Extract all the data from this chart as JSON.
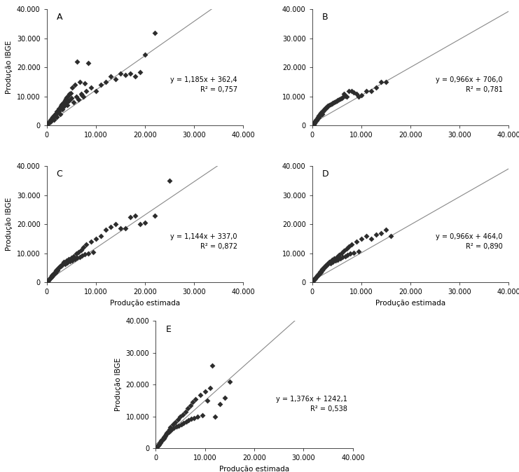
{
  "panels": [
    {
      "label": "A",
      "slope": 1.185,
      "intercept": 362.4,
      "r2": 0.757,
      "eq_text": "y = 1,185x + 362,4",
      "r2_text": "R² = 0,757",
      "scatter_x": [
        200,
        400,
        600,
        800,
        1000,
        1200,
        1400,
        1500,
        1800,
        2000,
        2200,
        2400,
        2600,
        2800,
        3000,
        3200,
        3400,
        3500,
        3800,
        4000,
        4200,
        4500,
        4800,
        5000,
        5500,
        6000,
        6500,
        7000,
        7500,
        8000,
        9000,
        10000,
        11000,
        12000,
        13000,
        14000,
        15000,
        16000,
        17000,
        18000,
        19000,
        20000,
        22000,
        100,
        300,
        700,
        900,
        1100,
        1300,
        1600,
        1700,
        1900,
        2100,
        2300,
        2500,
        2700,
        2900,
        3100,
        3300,
        3600,
        3700,
        3900,
        4100,
        4300,
        4600,
        4900,
        5200,
        5700,
        6200,
        6700,
        7200,
        7700,
        8500
      ],
      "scatter_y": [
        500,
        1000,
        1500,
        2000,
        2500,
        3000,
        2000,
        3500,
        4000,
        3000,
        4500,
        5000,
        5500,
        4000,
        6000,
        5500,
        6500,
        7000,
        7500,
        8000,
        7000,
        8500,
        9000,
        9500,
        8000,
        10000,
        9000,
        11000,
        10000,
        12000,
        13000,
        12000,
        14000,
        15000,
        17000,
        16000,
        18000,
        17500,
        18000,
        17000,
        18500,
        24500,
        32000,
        300,
        800,
        1200,
        1800,
        2200,
        2800,
        3200,
        3800,
        4200,
        4800,
        5200,
        5800,
        6200,
        6800,
        7200,
        7800,
        8200,
        8800,
        9200,
        9800,
        10200,
        10800,
        11200,
        13000,
        14000,
        22000,
        15000,
        10500,
        14500,
        21500
      ],
      "xlim": [
        0,
        40000
      ],
      "ylim": [
        0,
        40000
      ],
      "xticks": [
        0,
        10000,
        20000,
        30000,
        40000
      ],
      "yticks": [
        0,
        10000,
        20000,
        30000,
        40000
      ]
    },
    {
      "label": "B",
      "slope": 0.966,
      "intercept": 706.0,
      "r2": 0.781,
      "eq_text": "y = 0,966x + 706,0",
      "r2_text": "R² = 0,781",
      "scatter_x": [
        100,
        200,
        400,
        600,
        800,
        1000,
        1200,
        1400,
        1600,
        1800,
        2000,
        2200,
        2500,
        2800,
        3000,
        3500,
        4000,
        4500,
        5000,
        5500,
        6000,
        6500,
        7000,
        8000,
        9000,
        10000,
        11000,
        12000,
        13000,
        14000,
        15000,
        300,
        500,
        700,
        900,
        1100,
        1300,
        1500,
        1700,
        1900,
        2100,
        2300,
        2600,
        2900,
        3200,
        3700,
        4200,
        4700,
        5200,
        5700,
        6200,
        6700,
        7500,
        8500,
        9500
      ],
      "scatter_y": [
        200,
        500,
        1000,
        1500,
        2000,
        2500,
        3000,
        3500,
        4000,
        4500,
        4000,
        5000,
        5500,
        6000,
        6500,
        7000,
        7500,
        8000,
        8500,
        9000,
        9500,
        11000,
        10000,
        12000,
        11000,
        10500,
        12000,
        12000,
        13000,
        15000,
        15000,
        300,
        800,
        1200,
        1800,
        2200,
        2800,
        3200,
        3800,
        4200,
        4800,
        5200,
        5800,
        6200,
        6800,
        7200,
        7800,
        8200,
        8800,
        9200,
        9800,
        10200,
        12000,
        11500,
        10000
      ],
      "xlim": [
        0,
        40000
      ],
      "ylim": [
        0,
        40000
      ],
      "xticks": [
        0,
        10000,
        20000,
        30000,
        40000
      ],
      "yticks": [
        0,
        10000,
        20000,
        30000,
        40000
      ]
    },
    {
      "label": "C",
      "slope": 1.144,
      "intercept": 337.0,
      "r2": 0.872,
      "eq_text": "y = 1,144x + 337,0",
      "r2_text": "R² = 0,872",
      "scatter_x": [
        100,
        300,
        500,
        700,
        900,
        1200,
        1500,
        1800,
        2000,
        2200,
        2500,
        2800,
        3000,
        3500,
        4000,
        4500,
        5000,
        5500,
        6000,
        6500,
        7000,
        7500,
        8000,
        9000,
        10000,
        11000,
        12000,
        13000,
        14000,
        15000,
        16000,
        17000,
        18000,
        19000,
        20000,
        22000,
        25000,
        200,
        400,
        600,
        800,
        1000,
        1100,
        1300,
        1600,
        1700,
        1900,
        2100,
        2300,
        2600,
        2900,
        3200,
        3700,
        4200,
        4700,
        5200,
        5700,
        6200,
        6700,
        7200,
        7700,
        8500,
        9500
      ],
      "scatter_y": [
        300,
        600,
        1000,
        1400,
        1800,
        2200,
        2800,
        3200,
        3800,
        4200,
        5000,
        5500,
        6000,
        7000,
        7500,
        8000,
        8500,
        9000,
        10000,
        10500,
        11000,
        12000,
        13000,
        14000,
        15000,
        16000,
        18000,
        19000,
        20000,
        18500,
        18500,
        22500,
        23000,
        20000,
        20500,
        23000,
        35000,
        500,
        800,
        1200,
        1600,
        2000,
        2400,
        2800,
        3200,
        3600,
        4000,
        4400,
        4800,
        5200,
        5600,
        6000,
        6400,
        6800,
        7200,
        7600,
        8000,
        8400,
        8800,
        9200,
        9600,
        10000,
        10400
      ],
      "xlim": [
        0,
        40000
      ],
      "ylim": [
        0,
        40000
      ],
      "xticks": [
        0,
        10000,
        20000,
        30000,
        40000
      ],
      "yticks": [
        0,
        10000,
        20000,
        30000,
        40000
      ]
    },
    {
      "label": "D",
      "slope": 0.966,
      "intercept": 464.0,
      "r2": 0.89,
      "eq_text": "y = 0,966x + 464,0",
      "r2_text": "R² = 0,890",
      "scatter_x": [
        100,
        300,
        500,
        700,
        900,
        1200,
        1500,
        1800,
        2000,
        2200,
        2500,
        2800,
        3000,
        3500,
        4000,
        4500,
        5000,
        5500,
        6000,
        6500,
        7000,
        7500,
        8000,
        9000,
        10000,
        11000,
        12000,
        13000,
        14000,
        15000,
        16000,
        200,
        400,
        600,
        800,
        1000,
        1100,
        1300,
        1600,
        1700,
        1900,
        2100,
        2300,
        2600,
        2900,
        3200,
        3700,
        4200,
        4700,
        5200,
        5700,
        6200,
        6700,
        7200,
        7700,
        8500,
        9500
      ],
      "scatter_y": [
        300,
        700,
        1100,
        1500,
        1900,
        2400,
        2800,
        3500,
        4000,
        4500,
        5200,
        5700,
        6200,
        7000,
        7700,
        8200,
        8800,
        9500,
        10100,
        10800,
        11500,
        12200,
        13000,
        14000,
        15000,
        16000,
        15000,
        16500,
        17000,
        18000,
        16000,
        500,
        900,
        1300,
        1700,
        2100,
        2500,
        2900,
        3300,
        3700,
        4100,
        4500,
        4900,
        5400,
        5800,
        6200,
        6600,
        7000,
        7400,
        7800,
        8200,
        8600,
        9000,
        9400,
        9800,
        10200,
        10600
      ],
      "xlim": [
        0,
        40000
      ],
      "ylim": [
        0,
        40000
      ],
      "xticks": [
        0,
        10000,
        20000,
        30000,
        40000
      ],
      "yticks": [
        0,
        10000,
        20000,
        30000,
        40000
      ]
    },
    {
      "label": "E",
      "slope": 1.376,
      "intercept": 1242.1,
      "r2": 0.538,
      "eq_text": "y = 1,376x + 1242,1",
      "r2_text": "R² = 0,538",
      "scatter_x": [
        100,
        300,
        500,
        700,
        900,
        1200,
        1500,
        1800,
        2000,
        2200,
        2500,
        2800,
        3000,
        3500,
        4000,
        4500,
        5000,
        5500,
        6000,
        6500,
        7000,
        7500,
        8000,
        9000,
        10000,
        11000,
        12000,
        13000,
        14000,
        15000,
        200,
        400,
        600,
        800,
        1000,
        1100,
        1300,
        1600,
        1700,
        1900,
        2100,
        2300,
        2600,
        2900,
        3200,
        3700,
        4200,
        4700,
        5200,
        5700,
        6200,
        6700,
        7200,
        7700,
        8500,
        9500,
        10500,
        11500
      ],
      "scatter_y": [
        200,
        600,
        1000,
        1400,
        1800,
        2400,
        2900,
        3500,
        4100,
        4700,
        5400,
        6100,
        6700,
        7500,
        8300,
        9100,
        9900,
        10700,
        11600,
        12500,
        13500,
        14500,
        15500,
        16700,
        17800,
        19000,
        10000,
        14000,
        16000,
        21000,
        400,
        800,
        1200,
        1600,
        2000,
        2400,
        2800,
        3200,
        3600,
        4000,
        4400,
        4800,
        5200,
        5600,
        6000,
        6400,
        6800,
        7200,
        7600,
        8000,
        8400,
        8800,
        9200,
        9600,
        10000,
        10400,
        15000,
        26000
      ],
      "xlim": [
        0,
        40000
      ],
      "ylim": [
        0,
        40000
      ],
      "xticks": [
        0,
        10000,
        20000,
        30000,
        40000
      ],
      "yticks": [
        0,
        10000,
        20000,
        30000,
        40000
      ]
    }
  ],
  "xlabel": "Produção estimada",
  "ylabel": "Produção IBGE",
  "marker_color": "#2d2d2d",
  "marker_size": 4,
  "line_color": "#888888",
  "tick_label_format": "thousands_dot",
  "background_color": "#ffffff"
}
